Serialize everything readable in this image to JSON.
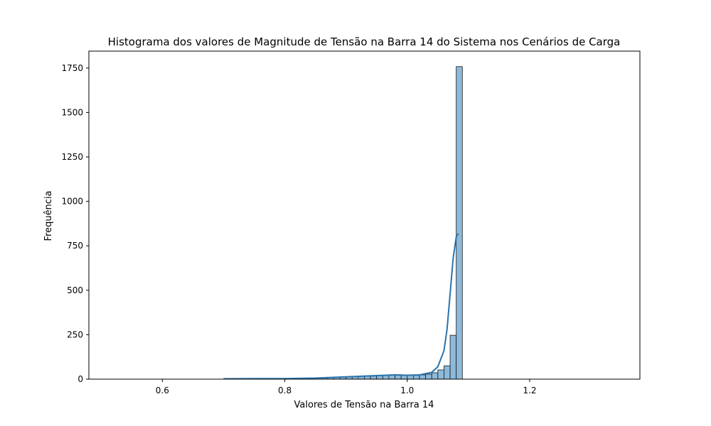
{
  "chart_data": {
    "type": "bar",
    "title": "Histograma dos valores de Magnitude de Tensão na Barra 14 do Sistema nos Cenários de Carga",
    "xlabel": "Valores de Tensão na Barra 14",
    "ylabel": "Frequência",
    "xlim": [
      0.48,
      1.38
    ],
    "ylim": [
      0,
      1845
    ],
    "x_ticks": [
      0.6,
      0.8,
      1.0,
      1.2
    ],
    "x_tick_labels": [
      "0.6",
      "0.8",
      "1.0",
      "1.2"
    ],
    "y_ticks": [
      0,
      250,
      500,
      750,
      1000,
      1250,
      1500,
      1750
    ],
    "y_tick_labels": [
      "0",
      "250",
      "500",
      "750",
      "1000",
      "1250",
      "1500",
      "1750"
    ],
    "grid": false,
    "legend": "none",
    "bin_width": 0.01,
    "bins": [
      {
        "x0": 0.7,
        "count": 1
      },
      {
        "x0": 0.71,
        "count": 1
      },
      {
        "x0": 0.72,
        "count": 2
      },
      {
        "x0": 0.73,
        "count": 2
      },
      {
        "x0": 0.74,
        "count": 2
      },
      {
        "x0": 0.75,
        "count": 3
      },
      {
        "x0": 0.76,
        "count": 3
      },
      {
        "x0": 0.77,
        "count": 2
      },
      {
        "x0": 0.78,
        "count": 3
      },
      {
        "x0": 0.79,
        "count": 2
      },
      {
        "x0": 0.8,
        "count": 3
      },
      {
        "x0": 0.81,
        "count": 3
      },
      {
        "x0": 0.82,
        "count": 4
      },
      {
        "x0": 0.83,
        "count": 5
      },
      {
        "x0": 0.84,
        "count": 5
      },
      {
        "x0": 0.85,
        "count": 6
      },
      {
        "x0": 0.86,
        "count": 7
      },
      {
        "x0": 0.87,
        "count": 8
      },
      {
        "x0": 0.88,
        "count": 10
      },
      {
        "x0": 0.89,
        "count": 12
      },
      {
        "x0": 0.9,
        "count": 14
      },
      {
        "x0": 0.91,
        "count": 15
      },
      {
        "x0": 0.92,
        "count": 16
      },
      {
        "x0": 0.93,
        "count": 16
      },
      {
        "x0": 0.94,
        "count": 17
      },
      {
        "x0": 0.95,
        "count": 20
      },
      {
        "x0": 0.96,
        "count": 22
      },
      {
        "x0": 0.97,
        "count": 24
      },
      {
        "x0": 0.98,
        "count": 25
      },
      {
        "x0": 0.99,
        "count": 24
      },
      {
        "x0": 1.0,
        "count": 22
      },
      {
        "x0": 1.01,
        "count": 21
      },
      {
        "x0": 1.02,
        "count": 24
      },
      {
        "x0": 1.03,
        "count": 28
      },
      {
        "x0": 1.04,
        "count": 36
      },
      {
        "x0": 1.05,
        "count": 52
      },
      {
        "x0": 1.06,
        "count": 75
      },
      {
        "x0": 1.07,
        "count": 247
      },
      {
        "x0": 1.08,
        "count": 1758
      }
    ],
    "kde": {
      "x": [
        0.7,
        0.75,
        0.8,
        0.85,
        0.9,
        0.95,
        0.98,
        1.0,
        1.02,
        1.04,
        1.05,
        1.06,
        1.065,
        1.07,
        1.075,
        1.08,
        1.0835
      ],
      "y": [
        2,
        3,
        3,
        6,
        13,
        20,
        24,
        22,
        24,
        38,
        70,
        160,
        280,
        480,
        680,
        800,
        820
      ]
    },
    "colors": {
      "bar_fill": "#8dbadb",
      "bar_edge": "#1a1a1a",
      "kde_line": "#2a73ac",
      "axes": "#000000"
    }
  }
}
